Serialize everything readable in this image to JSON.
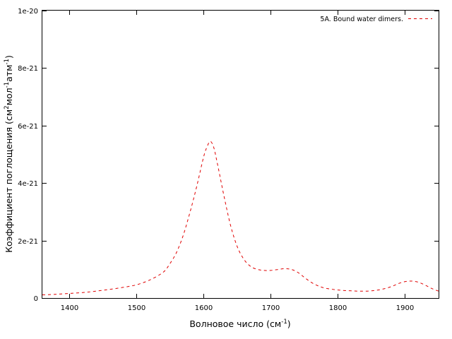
{
  "chart_data": {
    "type": "line",
    "title": "",
    "xlabel": {
      "base": "Волновое число (см",
      "sup": "-1",
      "tail": ")"
    },
    "ylabel": {
      "parts": [
        {
          "text": "Коэффициент поглощения (см",
          "sup": false
        },
        {
          "text": "2",
          "sup": true
        },
        {
          "text": "мол",
          "sup": false
        },
        {
          "text": "-1",
          "sup": true
        },
        {
          "text": "атм",
          "sup": false
        },
        {
          "text": "-1",
          "sup": true
        },
        {
          "text": ")",
          "sup": false
        }
      ]
    },
    "xlim": [
      1360,
      1950
    ],
    "ylim": [
      0,
      1e-20
    ],
    "x_ticks": [
      1400,
      1500,
      1600,
      1700,
      1800,
      1900
    ],
    "x_tick_labels": [
      "1400",
      "1500",
      "1600",
      "1700",
      "1800",
      "1900"
    ],
    "y_ticks": [
      0,
      2e-21,
      4e-21,
      6e-21,
      8e-21,
      1e-20
    ],
    "y_tick_labels": [
      "0",
      "2e-21",
      "4e-21",
      "6e-21",
      "8e-21",
      "1e-20"
    ],
    "grid": false,
    "legend_position": "top-right",
    "series": [
      {
        "name": "5A. Bound water dimers.",
        "color": "#e00000",
        "line_style": "dashed",
        "x": [
          1360,
          1380,
          1400,
          1420,
          1440,
          1460,
          1480,
          1500,
          1520,
          1540,
          1550,
          1560,
          1570,
          1580,
          1590,
          1600,
          1605,
          1610,
          1615,
          1620,
          1630,
          1640,
          1650,
          1660,
          1670,
          1680,
          1690,
          1700,
          1710,
          1720,
          1730,
          1740,
          1750,
          1760,
          1770,
          1780,
          1790,
          1800,
          1810,
          1820,
          1830,
          1840,
          1850,
          1860,
          1870,
          1880,
          1890,
          1900,
          1910,
          1920,
          1930,
          1940,
          1950
        ],
        "y": [
          1.1e-22,
          1.3e-22,
          1.6e-22,
          1.9e-22,
          2.4e-22,
          3e-22,
          3.7e-22,
          4.6e-22,
          6.3e-22,
          9e-22,
          1.2e-21,
          1.6e-21,
          2.2e-21,
          3e-21,
          3.9e-21,
          4.9e-21,
          5.25e-21,
          5.45e-21,
          5.25e-21,
          4.75e-21,
          3.6e-21,
          2.55e-21,
          1.8e-21,
          1.35e-21,
          1.1e-21,
          1e-21,
          9.6e-22,
          9.6e-22,
          9.9e-22,
          1.02e-21,
          1e-21,
          9e-22,
          7.2e-22,
          5.5e-22,
          4.3e-22,
          3.5e-22,
          3.1e-22,
          2.8e-22,
          2.6e-22,
          2.5e-22,
          2.4e-22,
          2.4e-22,
          2.5e-22,
          2.8e-22,
          3.3e-22,
          4e-22,
          5e-22,
          5.7e-22,
          5.9e-22,
          5.5e-22,
          4.5e-22,
          3.3e-22,
          2.4e-22
        ]
      }
    ]
  }
}
